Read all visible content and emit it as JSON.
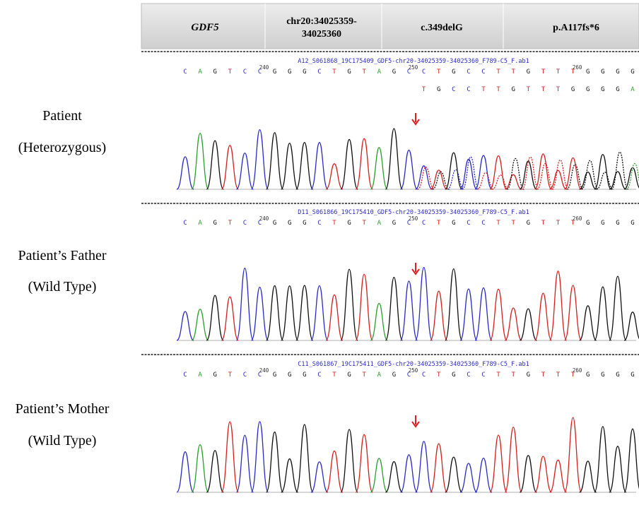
{
  "header": {
    "gene": "GDF5",
    "location": [
      "chr20:34025359-",
      "34025360"
    ],
    "cdna": "c.349delG",
    "protein": "p.A117fs*6"
  },
  "panels": [
    {
      "label": [
        "Patient",
        "(Heterozygous)"
      ],
      "file": "A12_S061868_19C175409_GDF5-chr20-34025359-34025360_F789-C5_F.ab1",
      "sequence": [
        "C",
        "A",
        "G",
        "T",
        "C",
        "C",
        "G",
        "G",
        "G",
        "C",
        "T",
        "G",
        "T",
        "A",
        "G",
        "C",
        "C",
        "T",
        "G",
        "C",
        "C",
        "T",
        "T",
        "G",
        "T",
        "T",
        "T",
        "G",
        "G",
        "G",
        "G"
      ],
      "second_sequence": [
        "T",
        "G",
        "C",
        "C",
        "T",
        "T",
        "G",
        "T",
        "T",
        "T",
        "G",
        "G",
        "G",
        "G",
        "A"
      ],
      "positions": [
        240,
        250,
        260
      ]
    },
    {
      "label": [
        "Patient’s Father",
        "(Wild Type)"
      ],
      "file": "D11_S061866_19C175410_GDF5-chr20-34025359-34025360_F789-C5_F.ab1",
      "sequence": [
        "C",
        "A",
        "G",
        "T",
        "C",
        "C",
        "G",
        "G",
        "G",
        "C",
        "T",
        "G",
        "T",
        "A",
        "G",
        "C",
        "C",
        "T",
        "G",
        "C",
        "C",
        "T",
        "T",
        "G",
        "T",
        "T",
        "T",
        "G",
        "G",
        "G",
        "G"
      ],
      "positions": [
        240,
        250,
        260
      ]
    },
    {
      "label": [
        "Patient’s Mother",
        "(Wild Type)"
      ],
      "file": "C11_S061867_19C175411_GDF5-chr20-34025359-34025360_F789-C5_F.ab1",
      "sequence": [
        "C",
        "A",
        "G",
        "T",
        "C",
        "C",
        "G",
        "G",
        "G",
        "C",
        "T",
        "G",
        "T",
        "A",
        "G",
        "C",
        "C",
        "T",
        "G",
        "C",
        "C",
        "T",
        "T",
        "G",
        "T",
        "T",
        "T",
        "G",
        "G",
        "G",
        "G"
      ],
      "positions": [
        240,
        250,
        260
      ]
    }
  ]
}
